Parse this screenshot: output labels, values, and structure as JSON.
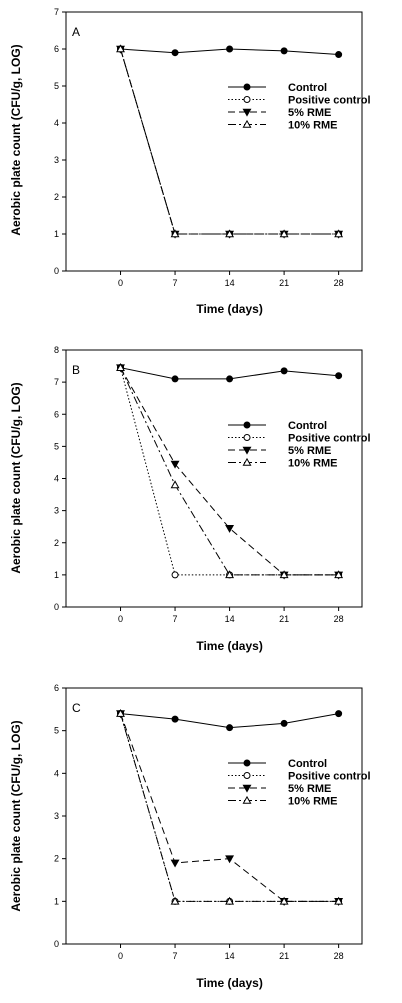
{
  "chart_data": [
    {
      "type": "line",
      "panel_label": "A",
      "x": [
        0,
        7,
        14,
        21,
        28
      ],
      "xlim": [
        -7,
        31
      ],
      "ylim": [
        0,
        7
      ],
      "yticks": [
        0,
        1,
        2,
        3,
        4,
        5,
        6,
        7
      ],
      "xlabel": "Time (days)",
      "ylabel": "Aerobic plate count (CFU/g, LOG)",
      "legend_position": "right",
      "series": [
        {
          "name": "Control",
          "values": [
            6.0,
            5.9,
            6.0,
            5.95,
            5.85
          ]
        },
        {
          "name": "Positive control",
          "values": [
            6.0,
            1.0,
            1.0,
            1.0,
            1.0
          ]
        },
        {
          "name": "5% RME",
          "values": [
            6.0,
            1.0,
            1.0,
            1.0,
            1.0
          ]
        },
        {
          "name": "10% RME",
          "values": [
            6.0,
            1.0,
            1.0,
            1.0,
            1.0
          ]
        }
      ]
    },
    {
      "type": "line",
      "panel_label": "B",
      "x": [
        0,
        7,
        14,
        21,
        28
      ],
      "xlim": [
        -7,
        31
      ],
      "ylim": [
        0,
        8
      ],
      "yticks": [
        0,
        1,
        2,
        3,
        4,
        5,
        6,
        7,
        8
      ],
      "xlabel": "Time (days)",
      "ylabel": "Aerobic plate count (CFU/g, LOG)",
      "legend_position": "right",
      "series": [
        {
          "name": "Control",
          "values": [
            7.45,
            7.1,
            7.1,
            7.35,
            7.2
          ]
        },
        {
          "name": "Positive control",
          "values": [
            7.45,
            1.0,
            1.0,
            1.0,
            1.0
          ]
        },
        {
          "name": "5% RME",
          "values": [
            7.45,
            4.45,
            2.45,
            1.0,
            1.0
          ]
        },
        {
          "name": "10% RME",
          "values": [
            7.45,
            3.8,
            1.0,
            1.0,
            1.0
          ]
        }
      ]
    },
    {
      "type": "line",
      "panel_label": "C",
      "x": [
        0,
        7,
        14,
        21,
        28
      ],
      "xlim": [
        -7,
        31
      ],
      "ylim": [
        0,
        6
      ],
      "yticks": [
        0,
        1,
        2,
        3,
        4,
        5,
        6
      ],
      "xlabel": "Time (days)",
      "ylabel": "Aerobic plate count (CFU/g, LOG)",
      "legend_position": "right",
      "series": [
        {
          "name": "Control",
          "values": [
            5.4,
            5.27,
            5.07,
            5.17,
            5.4
          ]
        },
        {
          "name": "Positive control",
          "values": [
            5.4,
            1.0,
            1.0,
            1.0,
            1.0
          ]
        },
        {
          "name": "5% RME",
          "values": [
            5.4,
            1.9,
            2.0,
            1.0,
            1.0
          ]
        },
        {
          "name": "10% RME",
          "values": [
            5.4,
            1.0,
            1.0,
            1.0,
            1.0
          ]
        }
      ]
    }
  ]
}
